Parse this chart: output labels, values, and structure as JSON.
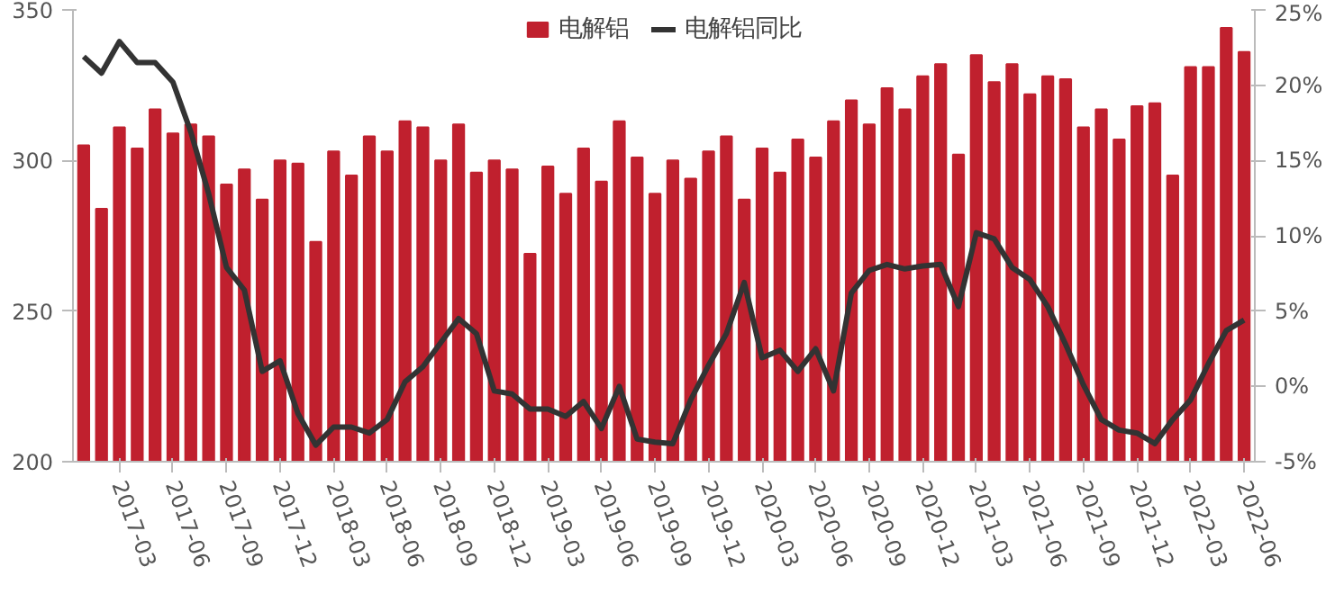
{
  "chart_data": {
    "type": "bar",
    "legend": "top",
    "categories": [
      null,
      null,
      "2017-03",
      null,
      null,
      "2017-06",
      null,
      null,
      "2017-09",
      null,
      null,
      "2017-12",
      null,
      null,
      "2018-03",
      null,
      null,
      "2018-06",
      null,
      null,
      "2018-09",
      null,
      null,
      "2018-12",
      null,
      null,
      "2019-03",
      null,
      null,
      "2019-06",
      null,
      null,
      "2019-09",
      null,
      null,
      "2019-12",
      null,
      null,
      "2020-03",
      null,
      null,
      "2020-06",
      null,
      null,
      "2020-09",
      null,
      null,
      "2020-12",
      null,
      null,
      "2021-03",
      null,
      null,
      "2021-06",
      null,
      null,
      "2021-09",
      null,
      null,
      "2021-12",
      null,
      null,
      "2022-03",
      null,
      null,
      "2022-06"
    ],
    "ylim": [
      200,
      350
    ],
    "yticks": [
      200,
      250,
      300,
      350
    ],
    "y2lim": [
      -5,
      25
    ],
    "y2ticks": [
      {
        "value": -5,
        "label": "-5%"
      },
      {
        "value": 0,
        "label": "0%"
      },
      {
        "value": 5,
        "label": "5%"
      },
      {
        "value": 10,
        "label": "10%"
      },
      {
        "value": 15,
        "label": "15%"
      },
      {
        "value": 20,
        "label": "20%"
      },
      {
        "value": 25,
        "label": "25%"
      }
    ],
    "series": [
      {
        "name": "电解铝",
        "color": "#c0202e",
        "values": [
          305,
          284,
          311,
          304,
          317,
          309,
          312,
          308,
          292,
          297,
          287,
          300,
          299,
          273,
          303,
          295,
          308,
          303,
          313,
          311,
          300,
          312,
          296,
          300,
          297,
          269,
          298,
          289,
          304,
          293,
          313,
          301,
          289,
          300,
          294,
          303,
          308,
          287,
          304,
          296,
          307,
          301,
          313,
          320,
          312,
          324,
          317,
          328,
          332,
          302,
          335,
          326,
          332,
          322,
          328,
          327,
          311,
          317,
          307,
          318,
          319,
          295,
          331,
          331,
          344,
          336
        ]
      },
      {
        "name": "电解铝同比",
        "type": "line",
        "axis": "y2",
        "color": "#333333",
        "values": [
          21.9,
          20.8,
          22.9,
          21.5,
          21.5,
          20.2,
          16.9,
          12.8,
          7.9,
          6.4,
          1.0,
          1.7,
          -1.8,
          -3.9,
          -2.7,
          -2.7,
          -3.1,
          -2.2,
          0.3,
          1.3,
          2.9,
          4.5,
          3.5,
          -0.3,
          -0.5,
          -1.5,
          -1.5,
          -2.0,
          -1.0,
          -2.8,
          0.0,
          -3.5,
          -3.7,
          -3.8,
          -0.9,
          1.4,
          3.5,
          6.9,
          1.9,
          2.4,
          1.0,
          2.5,
          -0.3,
          6.2,
          7.7,
          8.1,
          7.8,
          8.0,
          8.1,
          5.3,
          10.2,
          9.8,
          7.9,
          7.1,
          5.3,
          2.8,
          0.1,
          -2.2,
          -2.9,
          -3.1,
          -3.8,
          -2.2,
          -0.9,
          1.5,
          3.7,
          4.4
        ]
      }
    ]
  }
}
